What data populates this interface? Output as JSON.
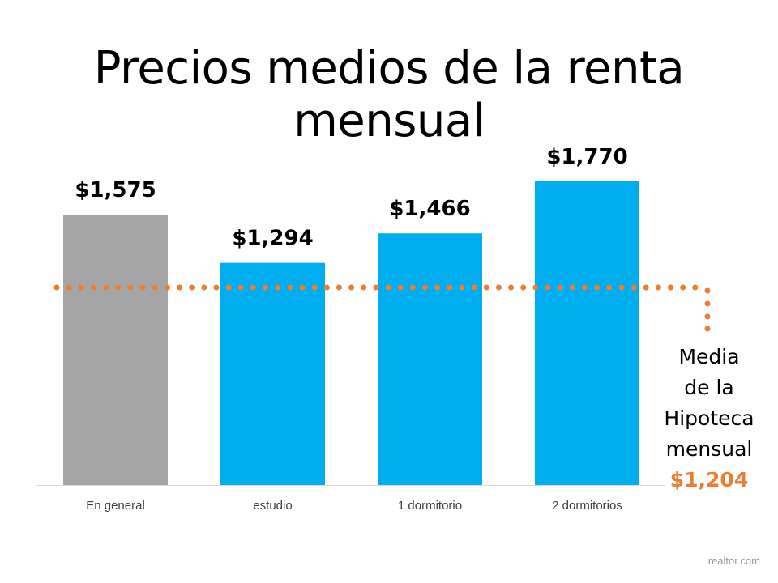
{
  "chart_data": {
    "type": "bar",
    "title": "Precios medios de la renta mensual",
    "categories": [
      "En general",
      "estudio",
      "1 dormitorio",
      "2 dormitorios"
    ],
    "values": [
      1575,
      1294,
      1466,
      1770
    ],
    "data_labels": [
      "$1,575",
      "$1,294",
      "$1,466",
      "$1,770"
    ],
    "bar_colors": [
      "#A5A5A5",
      "#00AEEF",
      "#00AEEF",
      "#00AEEF"
    ],
    "ylim": [
      0,
      2000
    ],
    "grid": false,
    "reference_line": {
      "value": 1204,
      "label_lines": [
        "Media",
        "de la",
        "Hipoteca",
        "mensual"
      ],
      "value_label": "$1,204",
      "color": "#ED7D31",
      "style": "dotted"
    }
  },
  "source": "realtor.com"
}
